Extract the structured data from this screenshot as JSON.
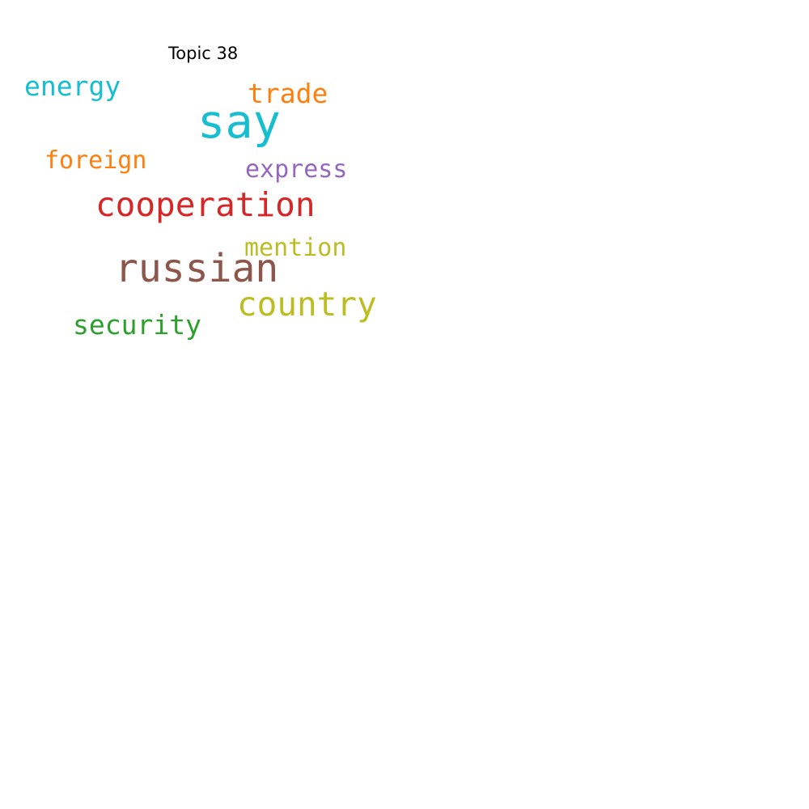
{
  "title": "Topic 38",
  "words": [
    {
      "key": "say",
      "text": "say",
      "color": "#17becf"
    },
    {
      "key": "russian",
      "text": "russian",
      "color": "#8c564b"
    },
    {
      "key": "cooperation",
      "text": "cooperation",
      "color": "#d62728"
    },
    {
      "key": "country",
      "text": "country",
      "color": "#bcbd22"
    },
    {
      "key": "energy",
      "text": "energy",
      "color": "#17becf"
    },
    {
      "key": "trade",
      "text": "trade",
      "color": "#ff7f0e"
    },
    {
      "key": "security",
      "text": "security",
      "color": "#2ca02c"
    },
    {
      "key": "foreign",
      "text": "foreign",
      "color": "#ff7f0e"
    },
    {
      "key": "express",
      "text": "express",
      "color": "#9467bd"
    },
    {
      "key": "mention",
      "text": "mention",
      "color": "#bcbd22"
    }
  ]
}
